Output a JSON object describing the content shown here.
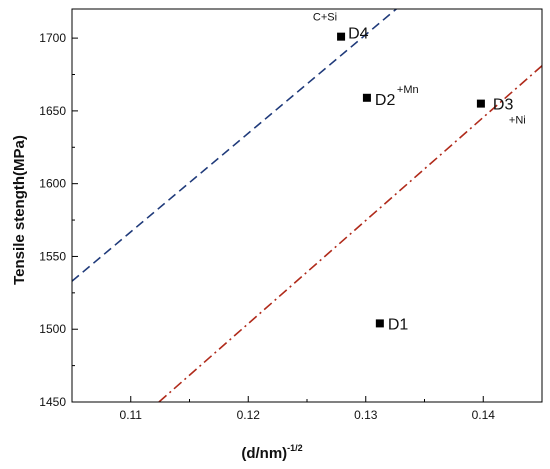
{
  "chart_data": {
    "type": "scatter",
    "xlabel": "(d/nm)",
    "xlabel_superscript": "-1/2",
    "ylabel": "Tensile stength(MPa)",
    "xlim": [
      0.105,
      0.145
    ],
    "ylim": [
      1450,
      1720
    ],
    "x_ticks": [
      0.11,
      0.12,
      0.13,
      0.14
    ],
    "x_tick_labels": [
      "0.11",
      "0.12",
      "0.13",
      "0.14"
    ],
    "y_ticks": [
      1450,
      1500,
      1550,
      1600,
      1650,
      1700
    ],
    "y_tick_labels": [
      "1450",
      "1500",
      "1550",
      "1600",
      "1650",
      "1700"
    ],
    "grid": false,
    "points": [
      {
        "label": "D1",
        "x": 0.1312,
        "y": 1504,
        "annotation": ""
      },
      {
        "label": "D2",
        "x": 0.1301,
        "y": 1659,
        "annotation": "+Mn"
      },
      {
        "label": "D3",
        "x": 0.1398,
        "y": 1655,
        "annotation": "+Ni"
      },
      {
        "label": "D4",
        "x": 0.1279,
        "y": 1701,
        "annotation": "C+Si"
      }
    ],
    "trend_lines": [
      {
        "style": "dashed",
        "color": "#1f3a7a",
        "x": [
          0.105,
          0.1326
        ],
        "y": [
          1533,
          1720
        ]
      },
      {
        "style": "dash-dot",
        "color": "#b02a1a",
        "x": [
          0.1124,
          0.145
        ],
        "y": [
          1450,
          1681
        ]
      }
    ]
  }
}
